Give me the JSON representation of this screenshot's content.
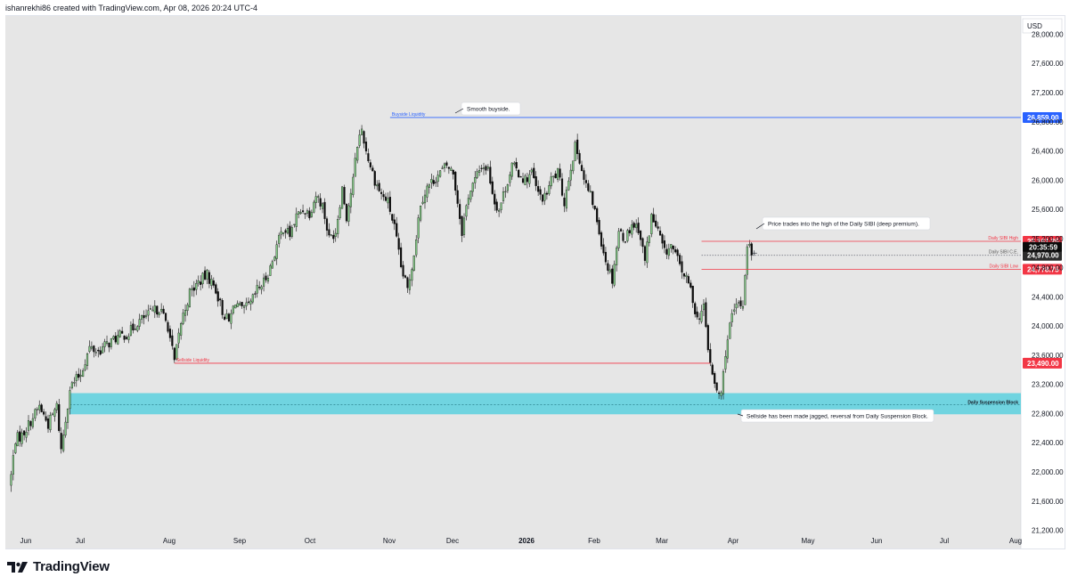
{
  "header": {
    "text": "ishanrekhi86 created with TradingView.com, Apr 08, 2026 20:24 UTC-4"
  },
  "brand": {
    "name": "TradingView"
  },
  "colors": {
    "up": "#81c784",
    "down": "#0b0b0b",
    "background": "#e6e6e6",
    "buyside": "#2962ff",
    "sellside": "#f23645",
    "block": "#5ad0de",
    "axis_panel": "#ffffff"
  },
  "chart_data": {
    "type": "candlestick",
    "currency": "USD",
    "y_ticks": [
      21200,
      21600,
      22000,
      22400,
      22800,
      23200,
      23600,
      24000,
      24400,
      24800,
      25200,
      25600,
      26000,
      26400,
      26800,
      27200,
      27600,
      28000
    ],
    "ylim": [
      20950,
      28250
    ],
    "x_labels": [
      "Jun",
      "Jul",
      "Aug",
      "Sep",
      "Oct",
      "Nov",
      "Dec",
      "2026",
      "Feb",
      "Mar",
      "Apr",
      "May",
      "Jun",
      "Jul",
      "Aug"
    ],
    "x_labels_bold": [
      "2026"
    ],
    "levels": [
      {
        "name": "Buyside Liquidity",
        "value": 26859,
        "badge": "26,859.00",
        "color": "#2962ff"
      },
      {
        "name": "Daily SIBI High",
        "value": 25161.25,
        "badge": "25,161.25",
        "color": "#f23645"
      },
      {
        "name": "Daily SIBI C.E.",
        "value": 24970,
        "badge": "24,970.00",
        "color": "#787b86"
      },
      {
        "name": "Daily SIBI Low",
        "value": 24778.75,
        "badge": "24,778.75",
        "color": "#f23645"
      },
      {
        "name": "Sellside Liquidity",
        "value": 23490,
        "badge": "23,490.00",
        "color": "#f23645"
      }
    ],
    "last_price": {
      "label": "20:35:59"
    },
    "zone": {
      "name": "Daily Suspension Block",
      "low": 22790,
      "high": 23080
    },
    "annotations": [
      {
        "text": "Smooth buyside."
      },
      {
        "text": "Price trades into the high of the Daily SIBI (deep premium)."
      },
      {
        "text": "Sellside has been made jagged, reversal from Daily Suspension Block."
      }
    ],
    "keypoints": [
      [
        1,
        21950
      ],
      [
        3,
        22450
      ],
      [
        6,
        22500
      ],
      [
        10,
        22700
      ],
      [
        14,
        22900
      ],
      [
        18,
        22650
      ],
      [
        22,
        22900
      ],
      [
        24,
        22300
      ],
      [
        28,
        23150
      ],
      [
        33,
        23350
      ],
      [
        37,
        23700
      ],
      [
        41,
        23650
      ],
      [
        45,
        23750
      ],
      [
        50,
        23850
      ],
      [
        55,
        23900
      ],
      [
        59,
        24050
      ],
      [
        64,
        24150
      ],
      [
        69,
        24250
      ],
      [
        73,
        24000
      ],
      [
        76,
        23500
      ],
      [
        79,
        24050
      ],
      [
        83,
        24450
      ],
      [
        87,
        24600
      ],
      [
        91,
        24700
      ],
      [
        95,
        24500
      ],
      [
        98,
        24200
      ],
      [
        101,
        24050
      ],
      [
        104,
        24350
      ],
      [
        107,
        24200
      ],
      [
        111,
        24300
      ],
      [
        114,
        24500
      ],
      [
        117,
        24600
      ],
      [
        120,
        24800
      ],
      [
        123,
        25100
      ],
      [
        126,
        25350
      ],
      [
        129,
        25250
      ],
      [
        132,
        25500
      ],
      [
        135,
        25600
      ],
      [
        138,
        25550
      ],
      [
        141,
        25800
      ],
      [
        144,
        25650
      ],
      [
        147,
        25200
      ],
      [
        150,
        25300
      ],
      [
        153,
        25900
      ],
      [
        155,
        25500
      ],
      [
        158,
        26000
      ],
      [
        160,
        26500
      ],
      [
        162,
        26700
      ],
      [
        164,
        26400
      ],
      [
        166,
        26200
      ],
      [
        168,
        26000
      ],
      [
        171,
        25800
      ],
      [
        174,
        25700
      ],
      [
        177,
        25350
      ],
      [
        180,
        24800
      ],
      [
        183,
        24500
      ],
      [
        186,
        25000
      ],
      [
        189,
        25700
      ],
      [
        192,
        25900
      ],
      [
        195,
        26000
      ],
      [
        198,
        26100
      ],
      [
        201,
        26200
      ],
      [
        204,
        26100
      ],
      [
        206,
        25700
      ],
      [
        208,
        25300
      ],
      [
        211,
        25800
      ],
      [
        214,
        26000
      ],
      [
        217,
        26200
      ],
      [
        220,
        26150
      ],
      [
        223,
        25700
      ],
      [
        225,
        25600
      ],
      [
        228,
        25900
      ],
      [
        231,
        26200
      ],
      [
        234,
        26100
      ],
      [
        237,
        26000
      ],
      [
        240,
        26100
      ],
      [
        243,
        25800
      ],
      [
        246,
        25750
      ],
      [
        249,
        26000
      ],
      [
        252,
        26100
      ],
      [
        255,
        25700
      ],
      [
        258,
        26200
      ],
      [
        260,
        26450
      ],
      [
        262,
        26300
      ],
      [
        264,
        26000
      ],
      [
        266,
        25850
      ],
      [
        268,
        25700
      ],
      [
        271,
        25300
      ],
      [
        274,
        24900
      ],
      [
        277,
        24650
      ],
      [
        280,
        25300
      ],
      [
        283,
        25200
      ],
      [
        286,
        25400
      ],
      [
        289,
        25350
      ],
      [
        292,
        24900
      ],
      [
        295,
        25500
      ],
      [
        298,
        25300
      ],
      [
        301,
        25000
      ],
      [
        304,
        25100
      ],
      [
        307,
        24900
      ],
      [
        310,
        24700
      ],
      [
        313,
        24500
      ],
      [
        316,
        24100
      ],
      [
        319,
        24250
      ],
      [
        321,
        23700
      ],
      [
        323,
        23300
      ],
      [
        325,
        23100
      ],
      [
        327,
        23050
      ],
      [
        329,
        23650
      ],
      [
        331,
        24000
      ],
      [
        333,
        24200
      ],
      [
        335,
        24300
      ],
      [
        337,
        24300
      ],
      [
        339,
        25150
      ],
      [
        341,
        25000
      ]
    ],
    "candles": {
      "count": 341,
      "seed": 7
    }
  },
  "axis": {
    "currency_label": "USD"
  }
}
